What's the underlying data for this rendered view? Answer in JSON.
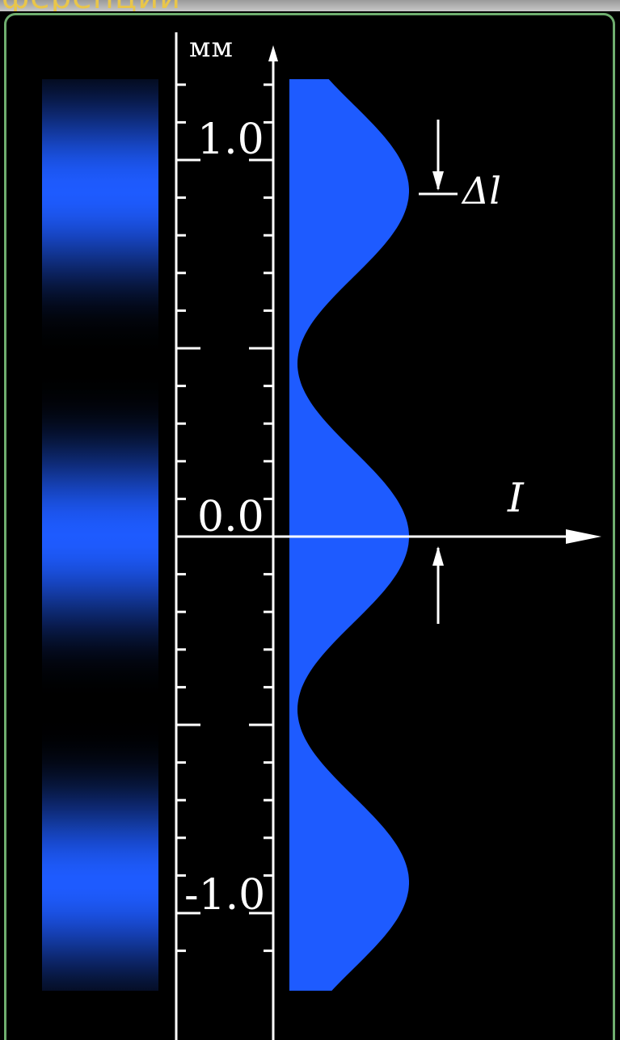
{
  "header": {
    "cut_title_text": "ференции"
  },
  "scale": {
    "unit": "мм",
    "tick_labels": [
      "1.0",
      "0.0",
      "-1.0"
    ]
  },
  "symbols": {
    "intensity": "I",
    "fringe_spacing": "Δl"
  },
  "colors": {
    "fringe": "#1e5bff",
    "background": "#000000",
    "frame_border": "#6fae6f",
    "axis": "#ffffff",
    "title_text": "#e9c64a"
  }
}
